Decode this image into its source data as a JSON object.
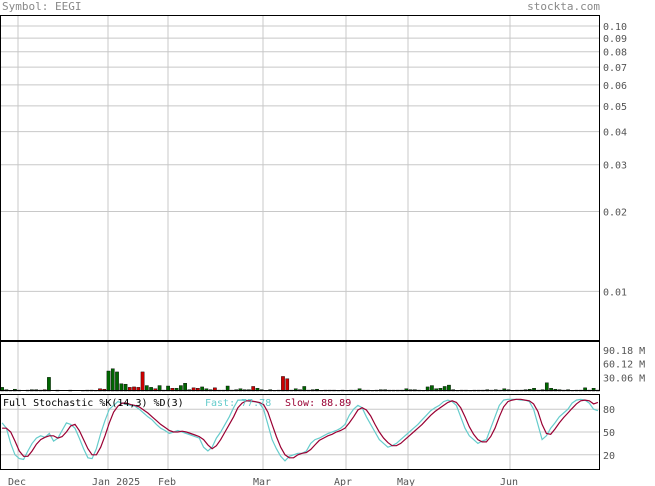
{
  "header": {
    "symbol_label": "Symbol: EEGI",
    "brand": "stockta.com"
  },
  "colors": {
    "up": "#006600",
    "down": "#cc0000",
    "fast": "#66cccc",
    "slow": "#990033",
    "grid": "#c8c8c8",
    "frame": "#000000",
    "label": "#555555"
  },
  "chart_data": [
    {
      "type": "line",
      "title": "",
      "scale": "log",
      "ylim": [
        0.0065,
        0.11
      ],
      "yticks": [
        "0.10",
        "0.09",
        "0.08",
        "0.07",
        "0.06",
        "0.05",
        "0.04",
        "0.03",
        "0.02",
        "0.01"
      ],
      "grid": true,
      "series": []
    },
    {
      "type": "bar",
      "ylabel": "Volume",
      "yticks": [
        "90.18 M",
        "60.12 M",
        "30.06 M"
      ],
      "ylim": [
        0,
        110
      ],
      "values": [
        8,
        3,
        1,
        4,
        2,
        0,
        2,
        3,
        3,
        2,
        3,
        30,
        0,
        2,
        0,
        0,
        2,
        0,
        0,
        1,
        2,
        2,
        1,
        5,
        4,
        44,
        49,
        42,
        16,
        15,
        8,
        9,
        8,
        42,
        12,
        8,
        5,
        12,
        2,
        11,
        6,
        6,
        12,
        17,
        3,
        7,
        6,
        9,
        5,
        3,
        7,
        2,
        2,
        11,
        2,
        3,
        5,
        3,
        3,
        10,
        6,
        3,
        1,
        3,
        1,
        2,
        32,
        27,
        2,
        5,
        3,
        10,
        2,
        3,
        4,
        1,
        2,
        2,
        2,
        1,
        2,
        1,
        2,
        2,
        5,
        2,
        2,
        1,
        2,
        3,
        3,
        2,
        2,
        2,
        2,
        5,
        3,
        3,
        2,
        1,
        9,
        12,
        5,
        6,
        10,
        13,
        3,
        1,
        2,
        2,
        1,
        2,
        2,
        2,
        3,
        2,
        3,
        2,
        5,
        3,
        1,
        2,
        2,
        3,
        4,
        6,
        2,
        3,
        18,
        6,
        4,
        3,
        2,
        3,
        1,
        2,
        2,
        7,
        2,
        6,
        2
      ],
      "colors": [
        "up",
        "up",
        "up",
        "up",
        "up",
        "up",
        "up",
        "up",
        "up",
        "up",
        "down",
        "up",
        "up",
        "up",
        "up",
        "up",
        "down",
        "up",
        "up",
        "up",
        "up",
        "up",
        "down",
        "down",
        "down",
        "up",
        "up",
        "up",
        "up",
        "up",
        "down",
        "down",
        "down",
        "down",
        "up",
        "up",
        "down",
        "up",
        "down",
        "up",
        "down",
        "up",
        "up",
        "up",
        "up",
        "down",
        "down",
        "up",
        "up",
        "up",
        "down",
        "up",
        "up",
        "up",
        "up",
        "up",
        "up",
        "up",
        "up",
        "down",
        "up",
        "up",
        "up",
        "up",
        "up",
        "up",
        "down",
        "down",
        "up",
        "up",
        "up",
        "up",
        "up",
        "up",
        "up",
        "up",
        "up",
        "up",
        "up",
        "up",
        "up",
        "down",
        "up",
        "up",
        "up",
        "up",
        "up",
        "down",
        "down",
        "up",
        "up",
        "up",
        "up",
        "up",
        "up",
        "up",
        "up",
        "up",
        "up",
        "up",
        "up",
        "up",
        "up",
        "up",
        "up",
        "up",
        "up",
        "up",
        "up",
        "up",
        "up",
        "up",
        "up",
        "up",
        "up",
        "up",
        "up",
        "up",
        "up",
        "up",
        "up",
        "up",
        "up",
        "up",
        "up",
        "up",
        "up",
        "up",
        "up",
        "up",
        "up",
        "up",
        "up",
        "up",
        "up",
        "up",
        "up",
        "up",
        "up",
        "up",
        "down"
      ]
    },
    {
      "type": "line",
      "title": "Full Stochastic %K(14,3) %D(3)",
      "ylim": [
        0,
        100
      ],
      "yticks": [
        80,
        50,
        20
      ],
      "legend": [
        {
          "label": "Fast:",
          "value": "77.78",
          "color": "fast"
        },
        {
          "label": "Slow:",
          "value": "88.89",
          "color": "slow"
        }
      ],
      "x_labels": [
        "Dec",
        "Jan 2025",
        "Feb",
        "Mar",
        "Apr",
        "May",
        "Jun"
      ],
      "series": [
        {
          "name": "Fast",
          "color": "fast",
          "values": [
            62,
            55,
            35,
            20,
            15,
            14,
            25,
            35,
            42,
            45,
            43,
            48,
            38,
            42,
            52,
            62,
            60,
            55,
            42,
            28,
            16,
            15,
            28,
            48,
            65,
            80,
            85,
            90,
            88,
            86,
            85,
            84,
            80,
            75,
            70,
            66,
            60,
            55,
            52,
            48,
            50,
            52,
            50,
            48,
            46,
            44,
            42,
            30,
            25,
            30,
            42,
            50,
            60,
            70,
            82,
            92,
            92,
            91,
            90,
            90,
            88,
            80,
            60,
            40,
            28,
            18,
            12,
            18,
            20,
            22,
            22,
            25,
            35,
            40,
            42,
            45,
            48,
            50,
            52,
            55,
            60,
            72,
            80,
            85,
            82,
            70,
            60,
            50,
            40,
            35,
            30,
            32,
            35,
            40,
            45,
            50,
            55,
            60,
            66,
            72,
            78,
            82,
            85,
            90,
            92,
            90,
            85,
            70,
            55,
            45,
            40,
            35,
            38,
            40,
            55,
            70,
            85,
            92,
            93,
            93,
            93,
            92,
            92,
            90,
            80,
            60,
            40,
            45,
            55,
            62,
            70,
            75,
            80,
            88,
            92,
            93,
            92,
            88,
            80,
            78
          ]
        },
        {
          "name": "Slow",
          "color": "slow",
          "values": [
            55,
            55,
            50,
            38,
            25,
            18,
            18,
            25,
            34,
            40,
            43,
            45,
            45,
            42,
            44,
            50,
            58,
            60,
            52,
            40,
            28,
            20,
            20,
            30,
            45,
            62,
            76,
            84,
            88,
            88,
            86,
            85,
            83,
            79,
            75,
            70,
            65,
            60,
            56,
            52,
            50,
            50,
            51,
            50,
            48,
            46,
            44,
            40,
            33,
            28,
            32,
            40,
            50,
            60,
            70,
            82,
            88,
            91,
            91,
            90,
            89,
            86,
            76,
            60,
            44,
            30,
            20,
            16,
            16,
            20,
            22,
            23,
            27,
            33,
            39,
            42,
            45,
            47,
            50,
            52,
            55,
            62,
            70,
            79,
            82,
            79,
            71,
            60,
            50,
            42,
            36,
            32,
            32,
            35,
            40,
            45,
            50,
            55,
            60,
            66,
            72,
            77,
            81,
            85,
            89,
            91,
            89,
            82,
            70,
            57,
            47,
            40,
            37,
            37,
            44,
            55,
            70,
            83,
            90,
            92,
            93,
            93,
            92,
            91,
            87,
            77,
            60,
            48,
            47,
            54,
            62,
            69,
            75,
            81,
            87,
            91,
            92,
            91,
            87,
            89
          ]
        }
      ]
    }
  ]
}
